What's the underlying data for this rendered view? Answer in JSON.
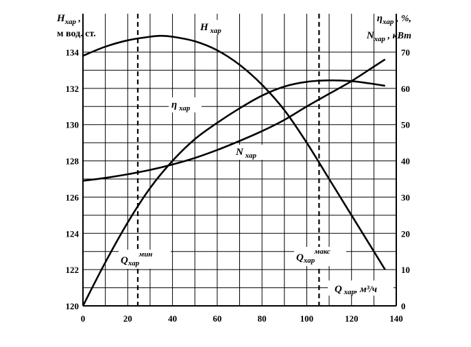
{
  "chart_data": {
    "type": "line",
    "x_axis": {
      "label": "Q",
      "label_sub": "хар",
      "label_unit": ", м³/ч",
      "range": [
        0,
        140
      ],
      "ticks": [
        0,
        20,
        40,
        60,
        80,
        100,
        120,
        140
      ]
    },
    "y_left_axis": {
      "label": "H",
      "label_sub": "хар",
      "label_suffix": " ,",
      "label_line2": "м вод. ст.",
      "range": [
        120,
        134
      ],
      "ticks": [
        120,
        122,
        124,
        126,
        128,
        130,
        132,
        134
      ]
    },
    "y_right_axis": {
      "label_eta": "η",
      "label_eta_sub": "хар",
      "label_eta_unit": " , %,",
      "label_n": "N",
      "label_n_sub": "хар",
      "label_n_unit": " , кВт",
      "range": [
        0,
        70
      ],
      "ticks": [
        0,
        10,
        20,
        30,
        40,
        50,
        60,
        70
      ]
    },
    "grid": true,
    "series": [
      {
        "name": "H",
        "name_sub": "хар",
        "axis": "left",
        "x": [
          0,
          10,
          20,
          30,
          35,
          40,
          50,
          60,
          70,
          80,
          90,
          100,
          110,
          120,
          130,
          135
        ],
        "y": [
          133.8,
          134.3,
          134.65,
          134.85,
          134.9,
          134.85,
          134.6,
          134.1,
          133.3,
          132.2,
          130.8,
          129.0,
          127.0,
          125.0,
          123.0,
          122.0
        ]
      },
      {
        "name": "η",
        "name_sub": "хар",
        "axis": "right",
        "x": [
          0,
          10,
          20,
          30,
          40,
          50,
          60,
          70,
          80,
          90,
          100,
          110,
          120,
          130,
          135
        ],
        "y": [
          0,
          12,
          23,
          32.5,
          40,
          46,
          50.5,
          54.5,
          58,
          60.5,
          61.8,
          62.2,
          62,
          61.2,
          60.7
        ]
      },
      {
        "name": "N",
        "name_sub": "хар",
        "axis": "right",
        "x": [
          0,
          10,
          20,
          30,
          40,
          50,
          60,
          70,
          80,
          90,
          100,
          110,
          120,
          130,
          135
        ],
        "y": [
          34.5,
          35.3,
          36.3,
          37.5,
          39,
          40.8,
          43,
          45.5,
          48.2,
          51.3,
          55,
          58.5,
          62,
          66,
          68
        ]
      }
    ],
    "vlines": [
      {
        "x": 24.5,
        "label": "Q",
        "label_sub": "хар",
        "label_sup": "мин"
      },
      {
        "x": 105.5,
        "label": "Q",
        "label_sub": "хар",
        "label_sup": "макс"
      }
    ]
  }
}
